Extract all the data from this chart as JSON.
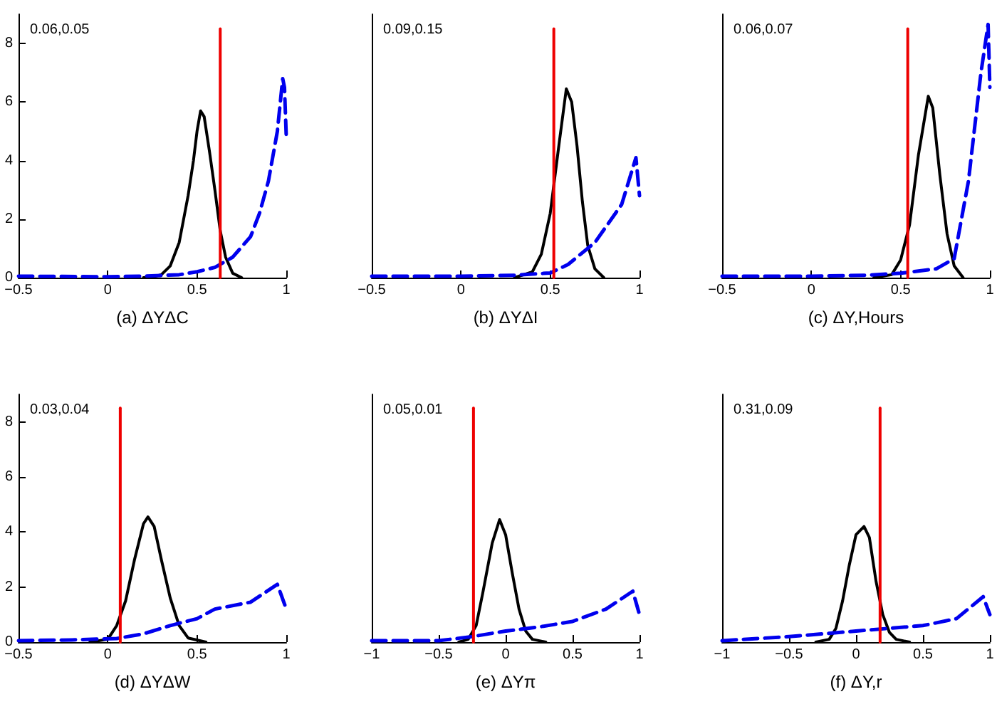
{
  "chart_data": [
    {
      "type": "line",
      "xlabel": "(a) ΔYΔC",
      "annotations": [
        "0.06,0.05"
      ],
      "xlim": [
        -0.5,
        1
      ],
      "xticks": [
        -0.5,
        0,
        0.5,
        1
      ],
      "ylim": [
        0,
        9
      ],
      "yticks": [
        0,
        2,
        4,
        6,
        8
      ],
      "series": [
        {
          "color": "#000000",
          "line_style": "solid",
          "x": [
            0.2,
            0.25,
            0.3,
            0.35,
            0.4,
            0.45,
            0.48,
            0.5,
            0.52,
            0.54,
            0.57,
            0.6,
            0.63,
            0.66,
            0.7,
            0.75
          ],
          "values": [
            0,
            0.02,
            0.1,
            0.4,
            1.2,
            2.8,
            4.0,
            5.0,
            5.7,
            5.5,
            4.3,
            3.0,
            1.6,
            0.7,
            0.15,
            0
          ]
        },
        {
          "color": "#0000ee",
          "line_style": "dashed",
          "x": [
            -0.5,
            0,
            0.2,
            0.4,
            0.5,
            0.6,
            0.7,
            0.8,
            0.85,
            0.9,
            0.95,
            0.98,
            0.99,
            1.0
          ],
          "values": [
            0.05,
            0.03,
            0.05,
            0.1,
            0.2,
            0.35,
            0.7,
            1.4,
            2.2,
            3.3,
            5.0,
            6.8,
            6.5,
            4.8
          ]
        },
        {
          "color": "#ee0000",
          "line_style": "solid",
          "x": [
            0.63,
            0.63
          ],
          "values": [
            0,
            8.5
          ]
        }
      ]
    },
    {
      "type": "line",
      "xlabel": "(b) ΔYΔI",
      "annotations": [
        "0.09,0.15"
      ],
      "xlim": [
        -0.5,
        1
      ],
      "xticks": [
        -0.5,
        0,
        0.5,
        1
      ],
      "ylim": [
        0,
        9
      ],
      "tick_labels": "x",
      "series": [
        {
          "color": "#000000",
          "line_style": "solid",
          "x": [
            0.3,
            0.4,
            0.45,
            0.5,
            0.55,
            0.59,
            0.62,
            0.65,
            0.68,
            0.71,
            0.75,
            0.8
          ],
          "values": [
            0,
            0.2,
            0.8,
            2.2,
            4.6,
            6.45,
            6.0,
            4.5,
            2.6,
            1.1,
            0.3,
            0
          ]
        },
        {
          "color": "#0000ee",
          "line_style": "dashed",
          "x": [
            -0.5,
            0,
            0.3,
            0.5,
            0.6,
            0.75,
            0.9,
            0.98,
            1.0
          ],
          "values": [
            0.05,
            0.05,
            0.08,
            0.16,
            0.45,
            1.2,
            2.5,
            4.1,
            2.8
          ]
        },
        {
          "color": "#ee0000",
          "line_style": "solid",
          "x": [
            0.52,
            0.52
          ],
          "values": [
            0,
            8.5
          ]
        }
      ]
    },
    {
      "type": "line",
      "xlabel": "(c) ΔY,Hours",
      "annotations": [
        "0.06,0.07"
      ],
      "xlim": [
        -0.5,
        1
      ],
      "xticks": [
        -0.5,
        0,
        0.5,
        1
      ],
      "ylim": [
        0,
        9
      ],
      "tick_labels": "x",
      "series": [
        {
          "color": "#000000",
          "line_style": "solid",
          "x": [
            0.35,
            0.45,
            0.5,
            0.55,
            0.6,
            0.655,
            0.68,
            0.72,
            0.76,
            0.8,
            0.85
          ],
          "values": [
            0,
            0.1,
            0.6,
            1.8,
            4.2,
            6.2,
            5.8,
            3.5,
            1.5,
            0.4,
            0
          ]
        },
        {
          "color": "#0000ee",
          "line_style": "dashed",
          "x": [
            -0.5,
            0,
            0.3,
            0.5,
            0.7,
            0.8,
            0.88,
            0.95,
            0.99,
            1.0
          ],
          "values": [
            0.05,
            0.05,
            0.08,
            0.15,
            0.3,
            0.65,
            3.3,
            7.0,
            8.65,
            6.5
          ]
        },
        {
          "color": "#ee0000",
          "line_style": "solid",
          "x": [
            0.54,
            0.54
          ],
          "values": [
            0,
            8.5
          ]
        }
      ]
    },
    {
      "type": "line",
      "xlabel": "(d) ΔYΔW",
      "annotations": [
        "0.03,0.04"
      ],
      "xlim": [
        -0.5,
        1
      ],
      "xticks": [
        -0.5,
        0,
        0.5,
        1
      ],
      "ylim": [
        0,
        9
      ],
      "yticks": [
        0,
        2,
        4,
        6,
        8
      ],
      "series": [
        {
          "color": "#000000",
          "line_style": "solid",
          "x": [
            -0.1,
            0,
            0.05,
            0.1,
            0.15,
            0.2,
            0.225,
            0.26,
            0.3,
            0.35,
            0.4,
            0.45,
            0.55
          ],
          "values": [
            0,
            0.1,
            0.6,
            1.5,
            3.0,
            4.3,
            4.55,
            4.2,
            3.0,
            1.6,
            0.6,
            0.15,
            0
          ]
        },
        {
          "color": "#0000ee",
          "line_style": "dashed",
          "x": [
            -0.5,
            -0.2,
            0.05,
            0.2,
            0.35,
            0.5,
            0.6,
            0.8,
            0.95,
            1.0
          ],
          "values": [
            0.05,
            0.08,
            0.13,
            0.3,
            0.6,
            0.85,
            1.2,
            1.45,
            2.1,
            1.2
          ]
        },
        {
          "color": "#ee0000",
          "line_style": "solid",
          "x": [
            0.07,
            0.07
          ],
          "values": [
            0,
            8.5
          ]
        }
      ]
    },
    {
      "type": "line",
      "xlabel": "(e) ΔYπ",
      "annotations": [
        "0.05,0.01"
      ],
      "xlim": [
        -1,
        1
      ],
      "xticks": [
        -1,
        -0.5,
        0,
        0.5,
        1
      ],
      "ylim": [
        0,
        9
      ],
      "tick_labels": "x",
      "series": [
        {
          "color": "#000000",
          "line_style": "solid",
          "x": [
            -0.35,
            -0.28,
            -0.22,
            -0.17,
            -0.1,
            -0.045,
            0,
            0.05,
            0.1,
            0.15,
            0.2,
            0.3
          ],
          "values": [
            0,
            0.1,
            0.6,
            1.8,
            3.6,
            4.45,
            3.9,
            2.5,
            1.2,
            0.4,
            0.1,
            0
          ]
        },
        {
          "color": "#0000ee",
          "line_style": "dashed",
          "x": [
            -1,
            -0.5,
            -0.25,
            0,
            0.25,
            0.5,
            0.75,
            0.95,
            1.0
          ],
          "values": [
            0.05,
            0.05,
            0.2,
            0.4,
            0.55,
            0.75,
            1.2,
            1.85,
            1.0
          ]
        },
        {
          "color": "#ee0000",
          "line_style": "solid",
          "x": [
            -0.24,
            -0.24
          ],
          "values": [
            0,
            8.5
          ]
        }
      ]
    },
    {
      "type": "line",
      "xlabel": "(f) ΔY,r",
      "annotations": [
        "0.31,0.09"
      ],
      "xlim": [
        -1,
        1
      ],
      "xticks": [
        -1,
        -0.5,
        0,
        0.5,
        1
      ],
      "ylim": [
        0,
        9
      ],
      "tick_labels": "x",
      "series": [
        {
          "color": "#000000",
          "line_style": "solid",
          "x": [
            -0.3,
            -0.2,
            -0.15,
            -0.1,
            -0.05,
            0,
            0.06,
            0.1,
            0.15,
            0.2,
            0.25,
            0.3,
            0.4
          ],
          "values": [
            0,
            0.1,
            0.5,
            1.5,
            2.8,
            3.9,
            4.2,
            3.8,
            2.2,
            1.0,
            0.35,
            0.1,
            0
          ]
        },
        {
          "color": "#0000ee",
          "line_style": "dashed",
          "x": [
            -1,
            -0.5,
            0,
            0.25,
            0.5,
            0.75,
            0.95,
            1.0
          ],
          "values": [
            0.05,
            0.2,
            0.4,
            0.5,
            0.6,
            0.85,
            1.65,
            1.0
          ]
        },
        {
          "color": "#ee0000",
          "line_style": "solid",
          "x": [
            0.18,
            0.18
          ],
          "values": [
            0,
            8.5
          ]
        }
      ]
    }
  ]
}
